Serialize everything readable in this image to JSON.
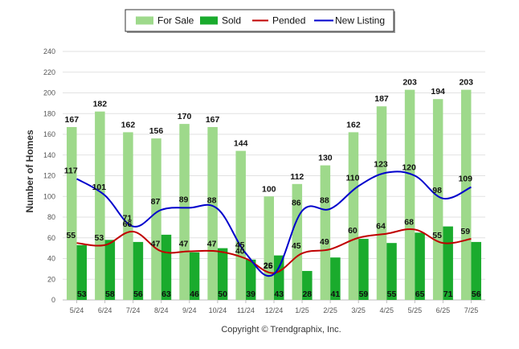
{
  "chart_data": {
    "type": "bar",
    "categories": [
      "5/24",
      "6/24",
      "7/24",
      "8/24",
      "9/24",
      "10/24",
      "11/24",
      "12/24",
      "1/25",
      "2/25",
      "3/25",
      "4/25",
      "5/25",
      "6/25",
      "7/25"
    ],
    "series": [
      {
        "name": "For Sale",
        "kind": "bar",
        "color": "#9ed98b",
        "values": [
          167,
          182,
          162,
          156,
          170,
          167,
          144,
          100,
          112,
          130,
          162,
          187,
          203,
          194,
          203
        ]
      },
      {
        "name": "Sold",
        "kind": "bar",
        "color": "#1aab2d",
        "values": [
          53,
          58,
          56,
          63,
          46,
          50,
          39,
          43,
          28,
          41,
          59,
          55,
          65,
          71,
          56
        ]
      },
      {
        "name": "Pended",
        "kind": "line",
        "color": "#c00000",
        "values": [
          55,
          53,
          66,
          47,
          47,
          47,
          40,
          26,
          45,
          49,
          60,
          64,
          68,
          55,
          59
        ]
      },
      {
        "name": "New Listing",
        "kind": "line",
        "color": "#0000cc",
        "values": [
          117,
          101,
          71,
          87,
          89,
          88,
          45,
          25,
          86,
          88,
          110,
          123,
          120,
          98,
          109
        ]
      }
    ],
    "title": "",
    "xlabel": "",
    "ylabel": "Number of Homes",
    "ylim": [
      0,
      240
    ],
    "yticks": [
      0,
      20,
      40,
      60,
      80,
      100,
      120,
      140,
      160,
      180,
      200,
      220,
      240
    ],
    "grid": true,
    "legend_position": "top-center",
    "copyright": "Copyright © Trendgraphix, Inc."
  }
}
